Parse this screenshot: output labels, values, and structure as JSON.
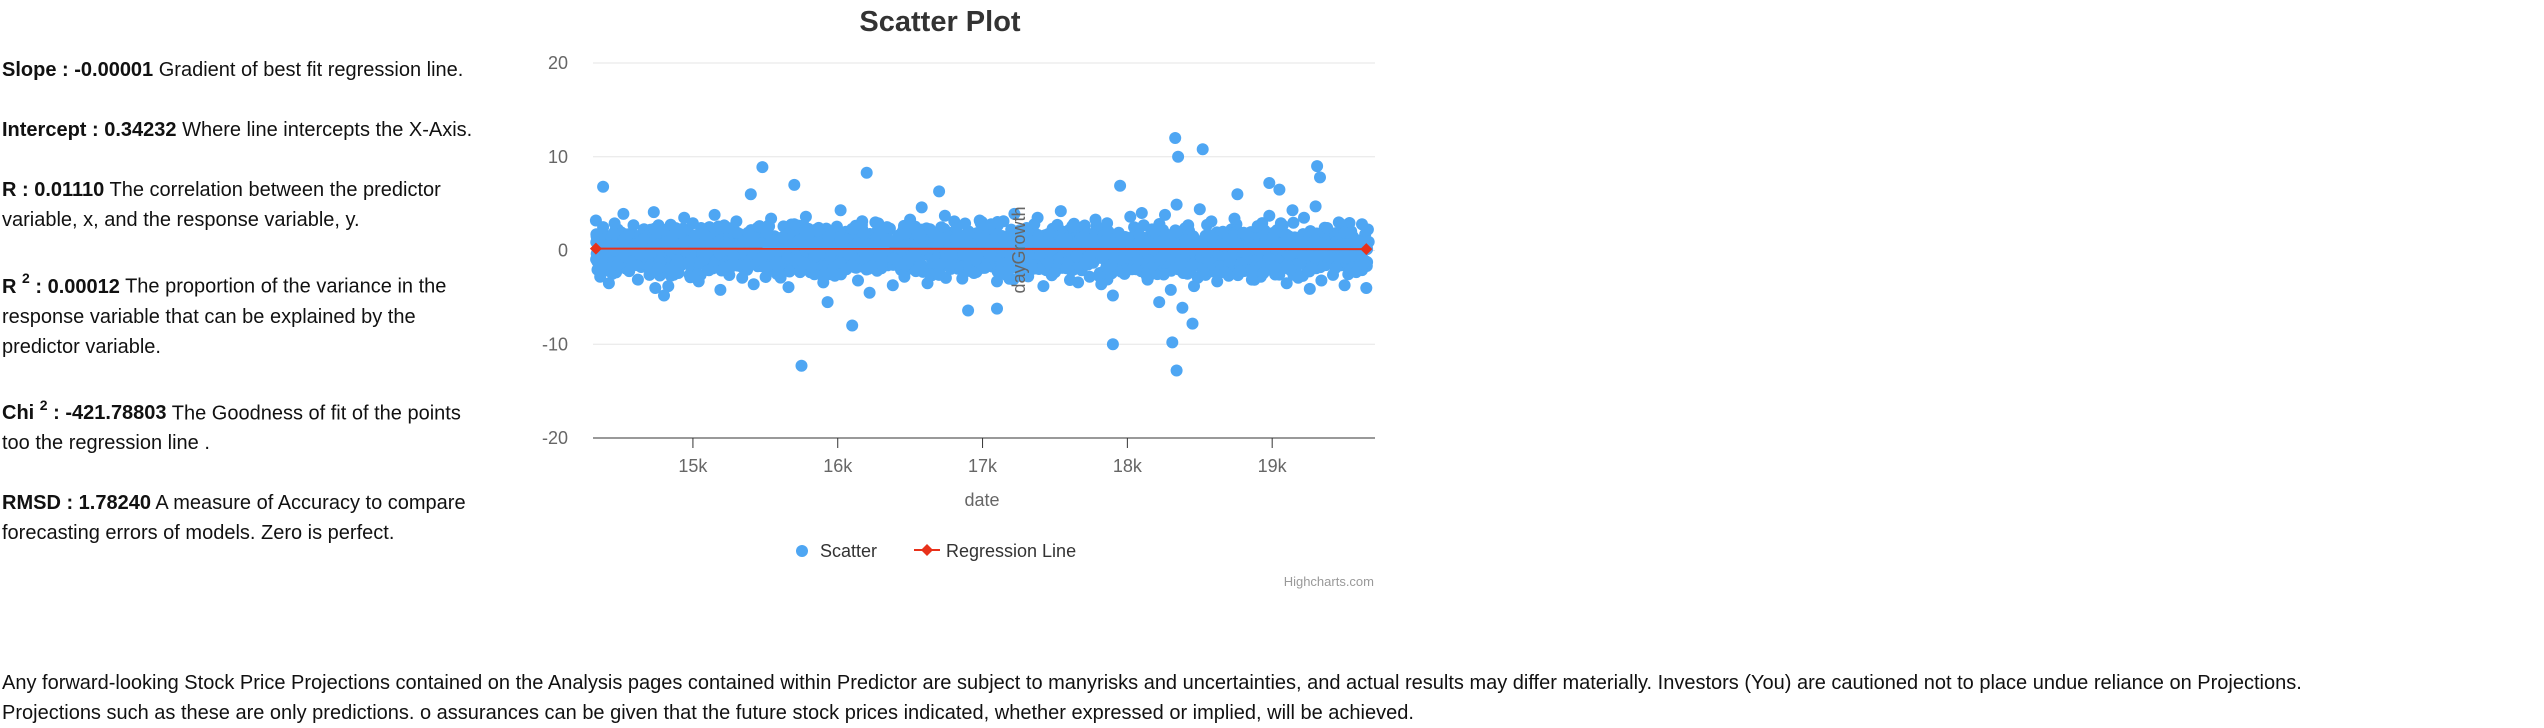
{
  "stats": [
    {
      "label": "Slope : -0.00001",
      "sup": "",
      "desc": "Gradient of best fit regression line."
    },
    {
      "label": "Intercept : 0.34232",
      "sup": "",
      "desc": "Where line intercepts the X-Axis."
    },
    {
      "label": "R : 0.01110",
      "sup": "",
      "desc": "The correlation between the predictor variable, x, and the response variable, y."
    },
    {
      "label": "R",
      "sup": "2",
      "value": " : 0.00012",
      "desc": "The proportion of the variance in the response variable that can be explained by the predictor variable."
    },
    {
      "label": "Chi",
      "sup": "2",
      "value": " : -421.78803",
      "desc": "The Goodness of fit of the points too the regression line ."
    },
    {
      "label": "RMSD : 1.78240",
      "sup": "",
      "desc": "A measure of Accuracy to compare forecasting errors of models. Zero is perfect."
    }
  ],
  "disclaimer": {
    "line1": "Any forward-looking Stock Price Projections contained on the Analysis pages contained within Predictor are subject to manyrisks and uncertainties, and actual results may differ materially. Investors (You) are cautioned not to place undue reliance on Projections.",
    "line2": "Projections such as these are only predictions. o assurances can be given that the future stock prices indicated, whether expressed or implied, will be achieved."
  },
  "chart_data": {
    "type": "scatter",
    "title": "Scatter Plot",
    "xlabel": "date",
    "ylabel": "dayGrowth",
    "xlim": [
      14310,
      19710
    ],
    "ylim": [
      -20,
      20
    ],
    "x_ticks": [
      15000,
      16000,
      17000,
      18000,
      19000
    ],
    "x_tick_labels": [
      "15k",
      "16k",
      "17k",
      "18k",
      "19k"
    ],
    "y_ticks": [
      -20,
      -10,
      0,
      10,
      20
    ],
    "grid": true,
    "legend": "bottom-center",
    "credits": "Highcharts.com",
    "colors": {
      "scatter": "#4ea6f3",
      "regression": "#e8311a"
    },
    "series": [
      {
        "name": "Scatter",
        "type": "scatter",
        "x": [
          14330,
          14360,
          14380,
          14420,
          14450,
          14480,
          14520,
          14560,
          14590,
          14620,
          14660,
          14700,
          14730,
          14760,
          14800,
          14830,
          14860,
          14900,
          14940,
          14970,
          15000,
          15040,
          15080,
          15110,
          15150,
          15190,
          15230,
          15260,
          15300,
          15340,
          15380,
          15420,
          15460,
          15500,
          15540,
          15580,
          15620,
          15660,
          15700,
          15740,
          15780,
          15820,
          15860,
          15900,
          15940,
          15980,
          16020,
          16060,
          16100,
          16140,
          16180,
          16220,
          16260,
          16300,
          16340,
          16380,
          16420,
          16460,
          16500,
          16540,
          16580,
          16620,
          16660,
          16700,
          16740,
          16780,
          16820,
          16860,
          16900,
          16940,
          16980,
          17020,
          17060,
          17100,
          17140,
          17180,
          17220,
          17260,
          17300,
          17340,
          17380,
          17420,
          17460,
          17500,
          17540,
          17580,
          17620,
          17660,
          17700,
          17740,
          17780,
          17820,
          17860,
          17900,
          17940,
          17980,
          18020,
          18060,
          18100,
          18140,
          18180,
          18220,
          18260,
          18300,
          18340,
          18380,
          18420,
          18460,
          18500,
          18540,
          18580,
          18620,
          18660,
          18700,
          18740,
          18780,
          18820,
          18860,
          18900,
          18940,
          18980,
          19020,
          19060,
          19100,
          19140,
          19180,
          19220,
          19260,
          19300,
          19340,
          19380,
          19420,
          19460,
          19500,
          19540,
          19580,
          19620,
          19650,
          14380,
          14740,
          15480,
          15750,
          16100,
          16200,
          15930,
          17900,
          18330,
          18340,
          18350,
          18310,
          18520,
          19310,
          19330,
          18450,
          14800,
          15400,
          16700,
          17100,
          18760,
          19050,
          15700,
          16900,
          17950,
          18980
        ],
        "y": [
          3.2,
          -2.8,
          2.5,
          -3.5,
          1.8,
          -1.5,
          3.9,
          -2.2,
          2.7,
          -3.1,
          1.2,
          -2.6,
          4.1,
          -1.9,
          2.2,
          -3.8,
          1.6,
          -2.4,
          3.5,
          -1.3,
          2.9,
          -3.3,
          1.7,
          -2.1,
          3.8,
          -4.2,
          2.4,
          -1.6,
          3.1,
          -2.9,
          1.9,
          -3.6,
          2.6,
          -1.8,
          3.4,
          -2.5,
          1.4,
          -3.9,
          2.8,
          -2.3,
          3.6,
          -1.7,
          2.1,
          -3.4,
          1.5,
          -2.7,
          4.3,
          -2.0,
          2.3,
          -3.2,
          1.8,
          -4.5,
          3.0,
          -1.4,
          2.5,
          -3.7,
          1.6,
          -2.8,
          3.3,
          -2.2,
          4.6,
          -3.5,
          1.9,
          -2.6,
          3.7,
          -1.5,
          2.4,
          -3.0,
          1.7,
          -2.4,
          3.2,
          -1.8,
          2.8,
          -3.3,
          1.3,
          -2.1,
          3.9,
          -2.7,
          2.0,
          -1.6,
          3.5,
          -3.8,
          1.8,
          -2.3,
          4.2,
          -1.9,
          2.6,
          -3.4,
          1.5,
          -2.8,
          3.3,
          -3.6,
          2.9,
          -4.8,
          1.9,
          -2.5,
          3.6,
          -2.0,
          4.0,
          -3.1,
          2.2,
          -5.5,
          3.8,
          -4.2,
          4.9,
          -6.1,
          2.7,
          -3.8,
          4.4,
          -2.6,
          3.1,
          -3.3,
          2.0,
          -2.7,
          3.4,
          -2.2,
          1.8,
          -3.1,
          2.6,
          -2.4,
          3.7,
          -1.8,
          2.9,
          -3.5,
          4.3,
          -2.9,
          3.5,
          -4.1,
          4.7,
          -3.2,
          2.4,
          -2.6,
          3.0,
          -3.7,
          1.9,
          -2.3,
          2.8,
          -4.0,
          6.8,
          -4.0,
          8.9,
          -12.3,
          -8.0,
          8.3,
          -5.5,
          -10.0,
          12.0,
          -12.8,
          10.0,
          -9.8,
          10.8,
          9.0,
          7.8,
          -7.8,
          -4.8,
          6.0,
          6.3,
          -6.2,
          6.0,
          6.5,
          7.0,
          -6.4,
          6.9,
          7.2
        ]
      },
      {
        "name": "Regression Line",
        "type": "line",
        "x": [
          14330,
          19650
        ],
        "y": [
          0.2,
          0.15
        ]
      }
    ]
  }
}
